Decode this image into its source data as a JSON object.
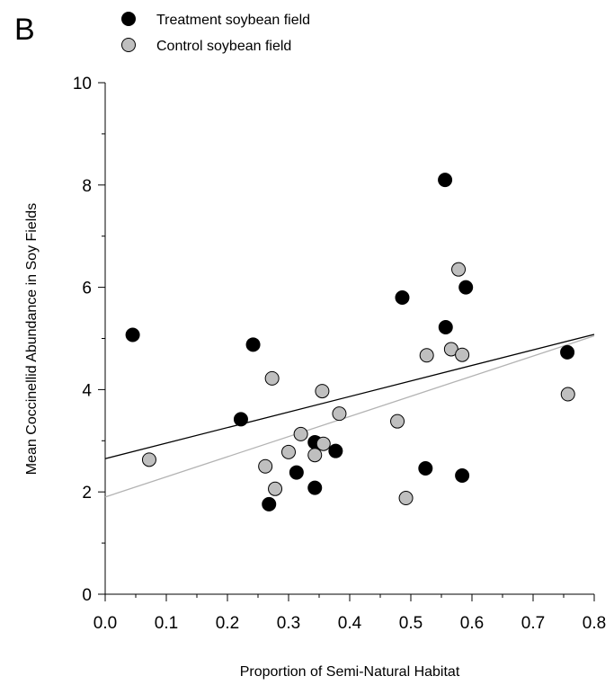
{
  "panel_label": "B",
  "chart_data": {
    "type": "scatter",
    "xlabel": "Proportion of Semi-Natural Habitat",
    "ylabel": "Mean Coccinellid Abundance in Soy Fields",
    "xlim": [
      0,
      0.8
    ],
    "ylim": [
      0,
      10
    ],
    "x_ticks": [
      "0.0",
      "0.1",
      "0.2",
      "0.3",
      "0.4",
      "0.5",
      "0.6",
      "0.7",
      "0.8"
    ],
    "y_ticks": [
      "0",
      "2",
      "4",
      "6",
      "8",
      "10"
    ],
    "legend_placement": "top-left",
    "grid": false,
    "series": [
      {
        "name": "Treatment soybean field",
        "marker_color": "#000000",
        "line_color": "#000000",
        "points": [
          [
            0.045,
            5.07
          ],
          [
            0.222,
            3.42
          ],
          [
            0.242,
            4.88
          ],
          [
            0.268,
            1.76
          ],
          [
            0.313,
            2.38
          ],
          [
            0.343,
            2.97
          ],
          [
            0.345,
            2.96
          ],
          [
            0.343,
            2.08
          ],
          [
            0.377,
            2.8
          ],
          [
            0.486,
            5.8
          ],
          [
            0.524,
            2.46
          ],
          [
            0.556,
            8.1
          ],
          [
            0.557,
            5.22
          ],
          [
            0.584,
            2.32
          ],
          [
            0.59,
            6.0
          ],
          [
            0.756,
            4.73
          ]
        ],
        "fit": {
          "x": [
            0.0,
            0.8
          ],
          "y": [
            2.65,
            5.08
          ]
        }
      },
      {
        "name": "Control soybean field",
        "marker_color": "#bfbfbf",
        "line_color": "#b3b3b3",
        "points": [
          [
            0.072,
            2.63
          ],
          [
            0.262,
            2.5
          ],
          [
            0.273,
            4.22
          ],
          [
            0.278,
            2.06
          ],
          [
            0.3,
            2.78
          ],
          [
            0.32,
            3.13
          ],
          [
            0.343,
            2.72
          ],
          [
            0.355,
            3.97
          ],
          [
            0.357,
            2.94
          ],
          [
            0.383,
            3.53
          ],
          [
            0.478,
            3.38
          ],
          [
            0.492,
            1.88
          ],
          [
            0.526,
            4.67
          ],
          [
            0.566,
            4.79
          ],
          [
            0.578,
            6.35
          ],
          [
            0.584,
            4.68
          ],
          [
            0.757,
            3.91
          ]
        ],
        "fit": {
          "x": [
            0.0,
            0.8
          ],
          "y": [
            1.9,
            5.05
          ]
        }
      }
    ]
  }
}
